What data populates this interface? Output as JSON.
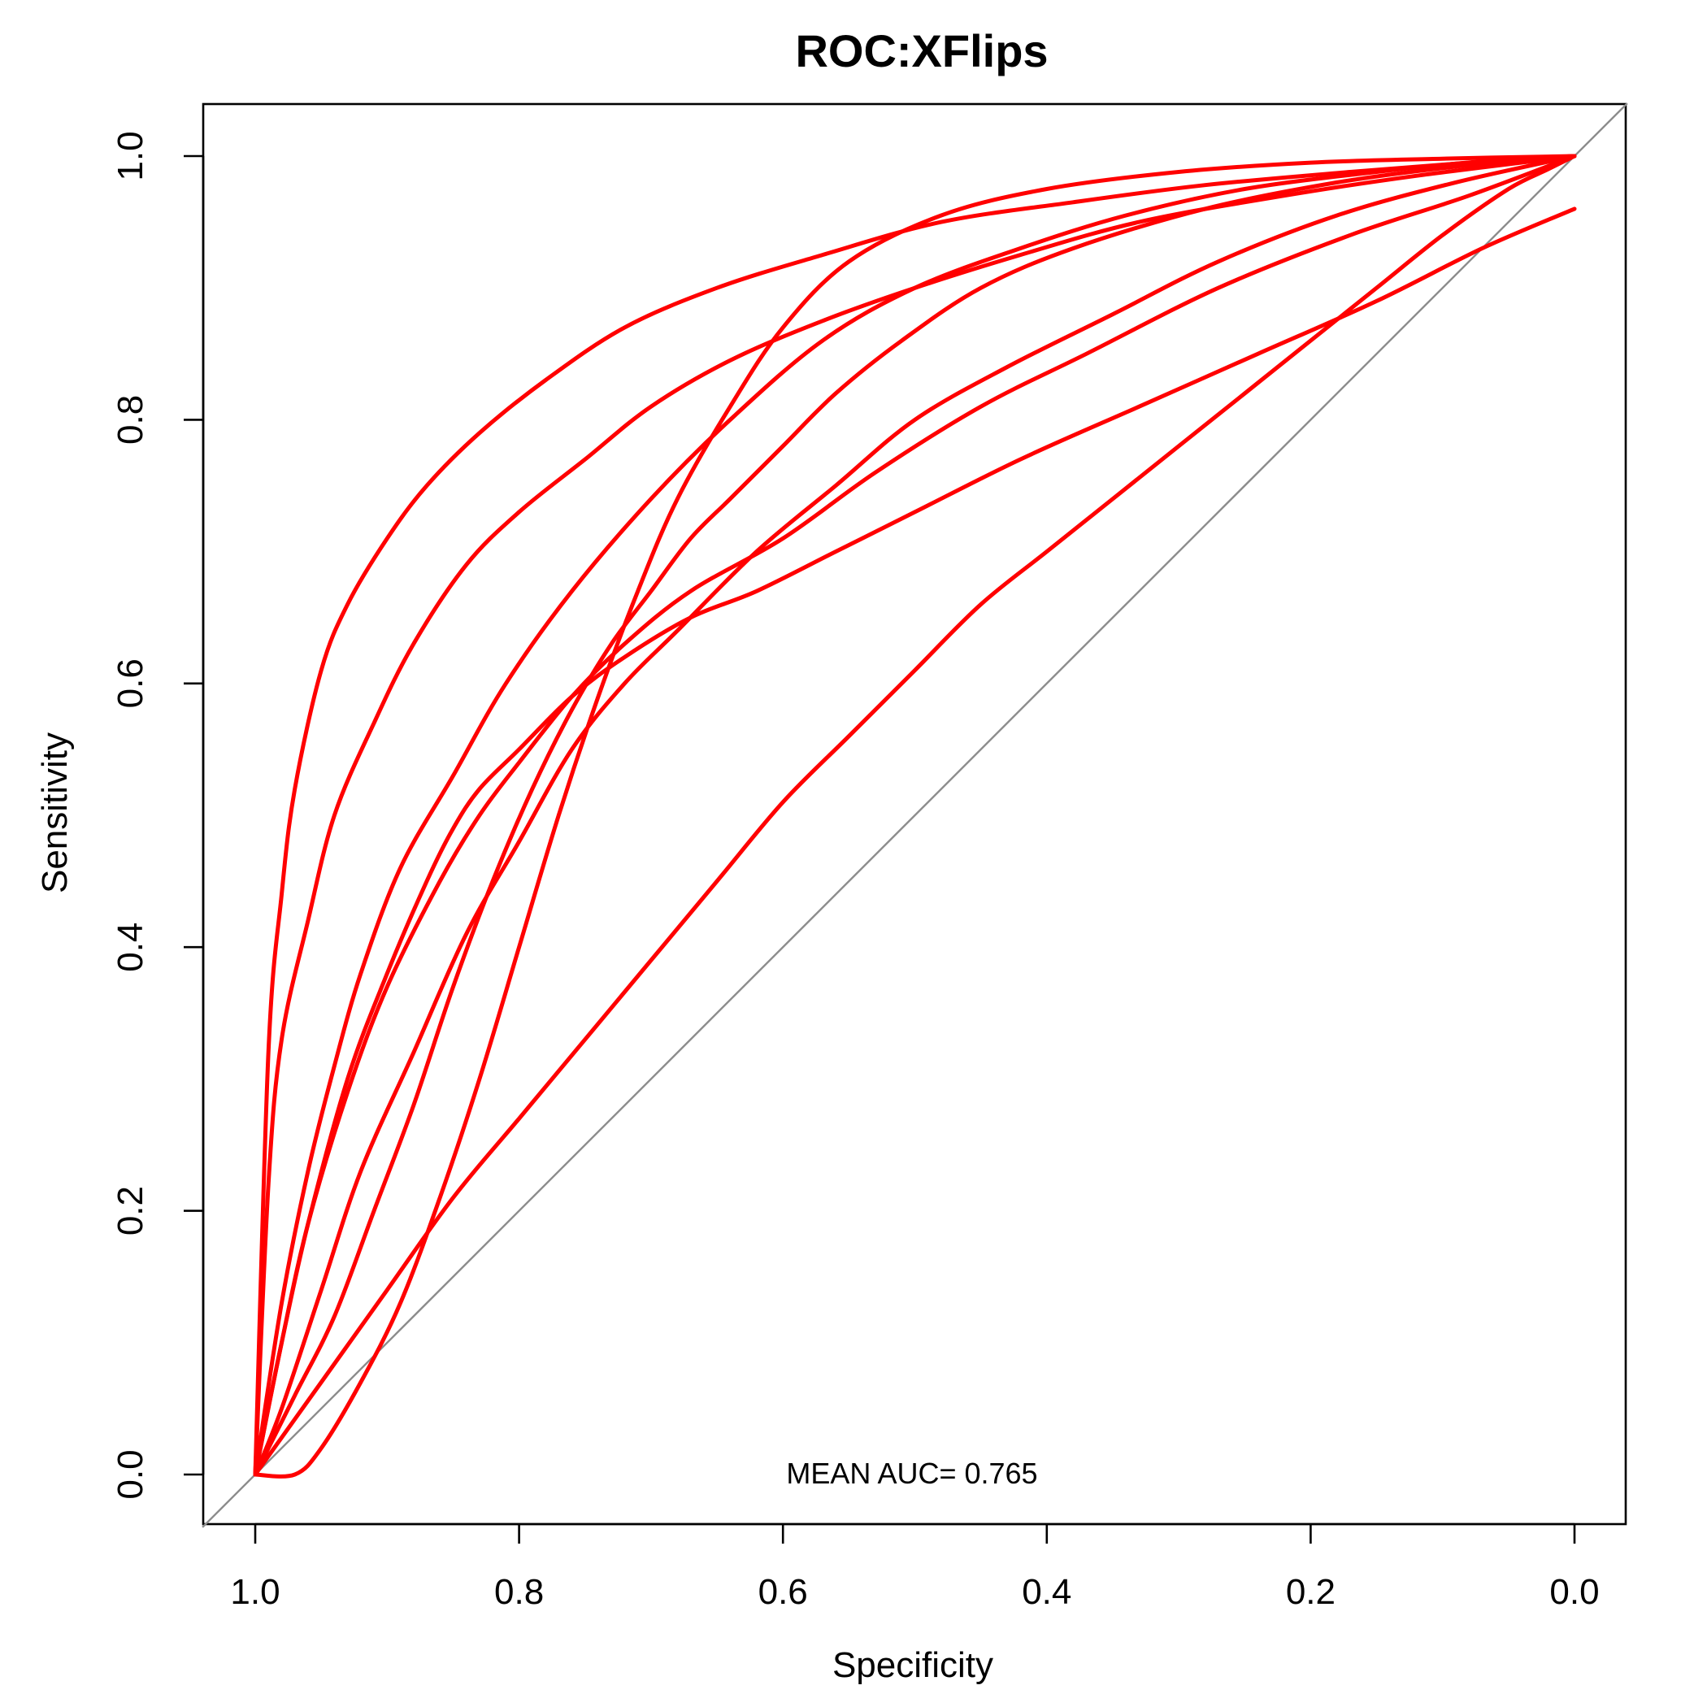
{
  "chart_data": {
    "type": "line",
    "title": "ROC:XFlips",
    "xlabel": "Specificity",
    "ylabel": "Sensitivity",
    "xlim": [
      1.0,
      0.0
    ],
    "ylim": [
      0.0,
      1.0
    ],
    "x_reversed": true,
    "xticks": [
      "1.0",
      "0.8",
      "0.6",
      "0.4",
      "0.2",
      "0.0"
    ],
    "yticks": [
      "0.0",
      "0.2",
      "0.4",
      "0.6",
      "0.8",
      "1.0"
    ],
    "xtick_values": [
      1.0,
      0.8,
      0.6,
      0.4,
      0.2,
      0.0
    ],
    "ytick_values": [
      0.0,
      0.2,
      0.4,
      0.6,
      0.8,
      1.0
    ],
    "grid": false,
    "legend": "none",
    "reference_line": {
      "from": [
        1.0,
        0.0
      ],
      "to": [
        0.0,
        1.0
      ],
      "color": "#8c8c8c"
    },
    "annotation": "MEAN AUC= 0.765",
    "line_color": "#ff0000",
    "series": [
      {
        "x": [
          1.0,
          0.99,
          0.98,
          0.97,
          0.95,
          0.93,
          0.9,
          0.87,
          0.83,
          0.78,
          0.72,
          0.65,
          0.57,
          0.48,
          0.38,
          0.28,
          0.17,
          0.08,
          0.0
        ],
        "y": [
          0.0,
          0.32,
          0.44,
          0.52,
          0.61,
          0.66,
          0.71,
          0.75,
          0.79,
          0.83,
          0.87,
          0.9,
          0.925,
          0.95,
          0.965,
          0.978,
          0.988,
          0.995,
          1.0
        ]
      },
      {
        "x": [
          1.0,
          0.99,
          0.98,
          0.96,
          0.94,
          0.91,
          0.88,
          0.84,
          0.8,
          0.75,
          0.7,
          0.64,
          0.57,
          0.5,
          0.42,
          0.33,
          0.22,
          0.12,
          0.0
        ],
        "y": [
          0.0,
          0.22,
          0.33,
          0.42,
          0.5,
          0.57,
          0.63,
          0.69,
          0.73,
          0.77,
          0.81,
          0.845,
          0.875,
          0.9,
          0.925,
          0.95,
          0.97,
          0.985,
          1.0
        ]
      },
      {
        "x": [
          1.0,
          0.98,
          0.96,
          0.93,
          0.9,
          0.86,
          0.83,
          0.8,
          0.76,
          0.72,
          0.67,
          0.6,
          0.53,
          0.45,
          0.37,
          0.27,
          0.17,
          0.08,
          0.0
        ],
        "y": [
          0.0,
          0.1,
          0.19,
          0.29,
          0.37,
          0.45,
          0.5,
          0.54,
          0.59,
          0.63,
          0.67,
          0.71,
          0.76,
          0.81,
          0.85,
          0.9,
          0.94,
          0.97,
          1.0
        ]
      },
      {
        "x": [
          1.0,
          0.98,
          0.96,
          0.94,
          0.92,
          0.89,
          0.85,
          0.81,
          0.76,
          0.7,
          0.64,
          0.57,
          0.5,
          0.42,
          0.34,
          0.25,
          0.15,
          0.07,
          0.0
        ],
        "y": [
          0.0,
          0.13,
          0.23,
          0.31,
          0.38,
          0.46,
          0.53,
          0.6,
          0.67,
          0.74,
          0.8,
          0.86,
          0.9,
          0.93,
          0.955,
          0.975,
          0.988,
          0.996,
          1.0
        ]
      },
      {
        "x": [
          1.0,
          0.98,
          0.95,
          0.92,
          0.88,
          0.84,
          0.8,
          0.76,
          0.72,
          0.68,
          0.62,
          0.56,
          0.5,
          0.43,
          0.35,
          0.27,
          0.18,
          0.09,
          0.0
        ],
        "y": [
          0.0,
          0.05,
          0.14,
          0.23,
          0.32,
          0.41,
          0.48,
          0.55,
          0.6,
          0.64,
          0.7,
          0.75,
          0.8,
          0.84,
          0.88,
          0.92,
          0.955,
          0.98,
          1.0
        ]
      },
      {
        "x": [
          1.0,
          0.97,
          0.95,
          0.92,
          0.89,
          0.86,
          0.83,
          0.8,
          0.77,
          0.74,
          0.71,
          0.68,
          0.64,
          0.6,
          0.55,
          0.48,
          0.4,
          0.3,
          0.2,
          0.1,
          0.0
        ],
        "y": [
          0.0,
          0.0,
          0.02,
          0.07,
          0.13,
          0.21,
          0.3,
          0.4,
          0.5,
          0.59,
          0.67,
          0.74,
          0.81,
          0.87,
          0.92,
          0.955,
          0.975,
          0.988,
          0.995,
          0.998,
          1.0
        ]
      },
      {
        "x": [
          1.0,
          0.97,
          0.94,
          0.91,
          0.88,
          0.85,
          0.82,
          0.79,
          0.76,
          0.73,
          0.7,
          0.67,
          0.64,
          0.6,
          0.56,
          0.51,
          0.45,
          0.38,
          0.28,
          0.18,
          0.09,
          0.0
        ],
        "y": [
          0.0,
          0.06,
          0.12,
          0.2,
          0.28,
          0.37,
          0.45,
          0.52,
          0.58,
          0.63,
          0.67,
          0.71,
          0.74,
          0.78,
          0.82,
          0.86,
          0.9,
          0.93,
          0.96,
          0.98,
          0.992,
          1.0
        ]
      },
      {
        "x": [
          1.0,
          0.98,
          0.96,
          0.93,
          0.9,
          0.87,
          0.85,
          0.83,
          0.8,
          0.76,
          0.72,
          0.67,
          0.62,
          0.56,
          0.5,
          0.42,
          0.33,
          0.24,
          0.15,
          0.07,
          0.0
        ],
        "y": [
          0.0,
          0.1,
          0.19,
          0.3,
          0.38,
          0.45,
          0.49,
          0.52,
          0.55,
          0.59,
          0.62,
          0.65,
          0.67,
          0.7,
          0.73,
          0.77,
          0.81,
          0.85,
          0.89,
          0.93,
          0.96
        ]
      },
      {
        "x": [
          1.0,
          0.95,
          0.9,
          0.85,
          0.8,
          0.75,
          0.7,
          0.65,
          0.6,
          0.55,
          0.5,
          0.45,
          0.4,
          0.35,
          0.3,
          0.25,
          0.2,
          0.15,
          0.1,
          0.05,
          0.02,
          0.0
        ],
        "y": [
          0.0,
          0.07,
          0.14,
          0.21,
          0.27,
          0.33,
          0.39,
          0.45,
          0.51,
          0.56,
          0.61,
          0.66,
          0.7,
          0.74,
          0.78,
          0.82,
          0.86,
          0.9,
          0.94,
          0.975,
          0.99,
          1.0
        ]
      }
    ]
  }
}
